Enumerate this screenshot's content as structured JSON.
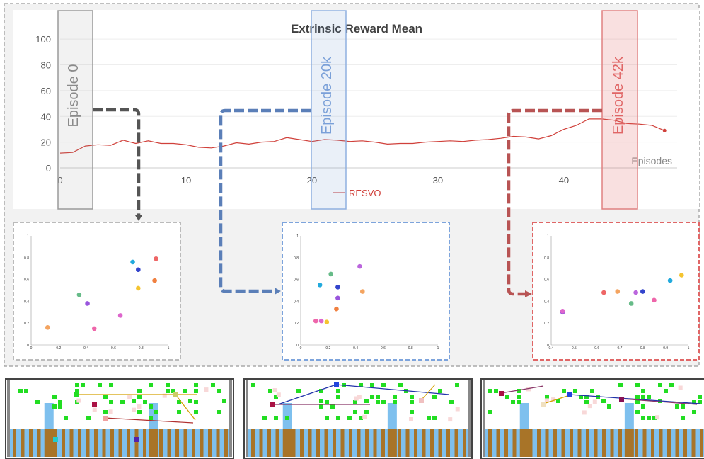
{
  "colors": {
    "reward_line": "#d0403a",
    "episode_0": "#9a9a9a",
    "episode_20k": "#5b88c8",
    "episode_42k": "#e06666",
    "green_cell": "#22dd22",
    "water": "#7ec0ee",
    "pillar": "#a87428"
  },
  "chart_data": [
    {
      "type": "line",
      "title": "Extrinsic Reward Mean",
      "xlabel": "Episodes",
      "ylabel": "",
      "xlim": [
        0,
        49
      ],
      "ylim": [
        0,
        110
      ],
      "x_ticks": [
        "0",
        "10",
        "20",
        "30",
        "40"
      ],
      "y_ticks": [
        "0",
        "20",
        "40",
        "60",
        "80",
        "100"
      ],
      "legend": "bottom-center",
      "grid": true,
      "series": [
        {
          "name": "RESVO",
          "x": [
            0,
            1,
            2,
            3,
            4,
            5,
            6,
            7,
            8,
            9,
            10,
            11,
            12,
            13,
            14,
            15,
            16,
            17,
            18,
            19,
            20,
            21,
            22,
            23,
            24,
            25,
            26,
            27,
            28,
            29,
            30,
            31,
            32,
            33,
            34,
            35,
            36,
            37,
            38,
            39,
            40,
            41,
            42,
            43,
            44,
            45,
            46,
            47,
            48
          ],
          "y": [
            11.5,
            12,
            17,
            18,
            17.5,
            21.5,
            19,
            21,
            19,
            19,
            18,
            16,
            15.5,
            17,
            19.5,
            18.5,
            20,
            20.5,
            23.5,
            22,
            20.5,
            22,
            21.5,
            20.5,
            21,
            20,
            18.5,
            19,
            19,
            20,
            20.5,
            21,
            20.5,
            21.5,
            22,
            23,
            24.5,
            24,
            22.5,
            25,
            30,
            33,
            38,
            38,
            37,
            34.5,
            34,
            33,
            29
          ]
        }
      ],
      "annotations": [
        "Episode 0",
        "Episode 20k",
        "Episode 42k"
      ]
    },
    {
      "type": "scatter",
      "title": "",
      "xlim": [
        0,
        1
      ],
      "ylim": [
        0,
        1
      ],
      "x_ticks": [
        "0",
        "0.2",
        "0.4",
        "0.6",
        "0.8",
        "1"
      ],
      "y_ticks": [
        "0",
        "0.2",
        "0.4",
        "0.6",
        "0.8",
        "1"
      ],
      "points": [
        {
          "x": 0.12,
          "y": 0.16,
          "color": "#f4a460"
        },
        {
          "x": 0.35,
          "y": 0.46,
          "color": "#66bb88"
        },
        {
          "x": 0.41,
          "y": 0.38,
          "color": "#9955dd"
        },
        {
          "x": 0.46,
          "y": 0.15,
          "color": "#ee66aa"
        },
        {
          "x": 0.65,
          "y": 0.27,
          "color": "#dd66cc"
        },
        {
          "x": 0.74,
          "y": 0.76,
          "color": "#22aadd"
        },
        {
          "x": 0.78,
          "y": 0.69,
          "color": "#3344cc"
        },
        {
          "x": 0.78,
          "y": 0.52,
          "color": "#f4c430"
        },
        {
          "x": 0.9,
          "y": 0.59,
          "color": "#f08040"
        },
        {
          "x": 0.91,
          "y": 0.79,
          "color": "#ee6666"
        }
      ]
    },
    {
      "type": "scatter",
      "title": "",
      "xlim": [
        0,
        1
      ],
      "ylim": [
        0,
        1
      ],
      "x_ticks": [
        "0",
        "0.2",
        "0.4",
        "0.6",
        "0.8",
        "1"
      ],
      "y_ticks": [
        "0",
        "0.2",
        "0.4",
        "0.6",
        "0.8",
        "1"
      ],
      "points": [
        {
          "x": 0.11,
          "y": 0.22,
          "color": "#ee66aa"
        },
        {
          "x": 0.15,
          "y": 0.22,
          "color": "#dd66cc"
        },
        {
          "x": 0.19,
          "y": 0.21,
          "color": "#f4c430"
        },
        {
          "x": 0.14,
          "y": 0.55,
          "color": "#22aadd"
        },
        {
          "x": 0.22,
          "y": 0.65,
          "color": "#66bb88"
        },
        {
          "x": 0.26,
          "y": 0.33,
          "color": "#f08040"
        },
        {
          "x": 0.27,
          "y": 0.43,
          "color": "#9955dd"
        },
        {
          "x": 0.27,
          "y": 0.53,
          "color": "#3344cc"
        },
        {
          "x": 0.43,
          "y": 0.72,
          "color": "#bb66dd"
        },
        {
          "x": 0.45,
          "y": 0.49,
          "color": "#f4a460"
        }
      ]
    },
    {
      "type": "scatter",
      "title": "",
      "xlim": [
        0.4,
        1
      ],
      "ylim": [
        0,
        1
      ],
      "x_ticks": [
        "0.4",
        "0.5",
        "0.6",
        "0.7",
        "0.8",
        "0.9",
        "1"
      ],
      "y_ticks": [
        "0",
        "0.2",
        "0.4",
        "0.6",
        "0.8",
        "1"
      ],
      "points": [
        {
          "x": 0.45,
          "y": 0.3,
          "color": "#9955dd"
        },
        {
          "x": 0.45,
          "y": 0.31,
          "color": "#dd66cc"
        },
        {
          "x": 0.63,
          "y": 0.48,
          "color": "#ee6666"
        },
        {
          "x": 0.69,
          "y": 0.49,
          "color": "#f4a460"
        },
        {
          "x": 0.75,
          "y": 0.38,
          "color": "#66bb88"
        },
        {
          "x": 0.77,
          "y": 0.48,
          "color": "#bb66dd"
        },
        {
          "x": 0.8,
          "y": 0.49,
          "color": "#3344cc"
        },
        {
          "x": 0.85,
          "y": 0.41,
          "color": "#ee66aa"
        },
        {
          "x": 0.92,
          "y": 0.59,
          "color": "#22aadd"
        },
        {
          "x": 0.97,
          "y": 0.64,
          "color": "#f4c430"
        }
      ]
    }
  ]
}
